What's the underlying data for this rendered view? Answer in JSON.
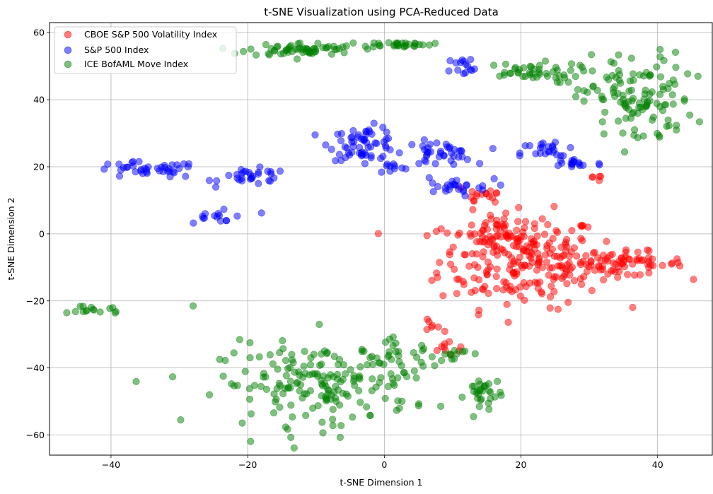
{
  "chart_data": {
    "type": "scatter",
    "title": "t-SNE Visualization using PCA-Reduced Data",
    "xlabel": "t-SNE Dimension 1",
    "ylabel": "t-SNE Dimension 2",
    "xlim": [
      -49,
      48
    ],
    "ylim": [
      -66,
      63
    ],
    "xticks": [
      -40,
      -20,
      0,
      20,
      40
    ],
    "yticks": [
      -60,
      -40,
      -20,
      0,
      20,
      40,
      60
    ],
    "xtick_labels": [
      "−40",
      "−20",
      "0",
      "20",
      "40"
    ],
    "ytick_labels": [
      "−60",
      "−40",
      "−20",
      "0",
      "20",
      "40",
      "60"
    ],
    "grid": true,
    "legend_position": "top-left",
    "point_alpha": 0.5,
    "series": [
      {
        "name": "CBOE S&P 500 Volatility Index",
        "color": "#ff0000",
        "clusters": [
          {
            "cx": 20,
            "cy": -8,
            "sx": 6,
            "sy": 7,
            "n": 220
          },
          {
            "cx": 17,
            "cy": 1,
            "sx": 3,
            "sy": 2,
            "n": 40
          },
          {
            "cx": 34,
            "cy": -9,
            "sx": 5,
            "sy": 1.8,
            "n": 80
          },
          {
            "cx": 14,
            "cy": 12,
            "sx": 2,
            "sy": 2,
            "n": 15
          },
          {
            "cx": 31.5,
            "cy": 17,
            "sx": 0.5,
            "sy": 1,
            "n": 5
          },
          {
            "cx": 7,
            "cy": -27,
            "sx": 0.8,
            "sy": 1.5,
            "n": 6
          },
          {
            "cx": 9.5,
            "cy": -34,
            "sx": 1.5,
            "sy": 1.5,
            "n": 10
          }
        ]
      },
      {
        "name": "S&P 500 Index",
        "color": "#0000ff",
        "clusters": [
          {
            "cx": -35,
            "cy": 19,
            "sx": 4,
            "sy": 1.2,
            "n": 40
          },
          {
            "cx": -19,
            "cy": 17,
            "sx": 2.5,
            "sy": 1.2,
            "n": 30
          },
          {
            "cx": -24,
            "cy": 5,
            "sx": 2.5,
            "sy": 1.8,
            "n": 15
          },
          {
            "cx": -3,
            "cy": 27,
            "sx": 2.5,
            "sy": 2.5,
            "n": 60
          },
          {
            "cx": 8,
            "cy": 24,
            "sx": 2.5,
            "sy": 1.8,
            "n": 40
          },
          {
            "cx": 10,
            "cy": 14,
            "sx": 3,
            "sy": 1.2,
            "n": 25
          },
          {
            "cx": 24,
            "cy": 24,
            "sx": 2,
            "sy": 2,
            "n": 25
          },
          {
            "cx": 28,
            "cy": 21,
            "sx": 2,
            "sy": 1,
            "n": 15
          },
          {
            "cx": 12,
            "cy": 50,
            "sx": 1.5,
            "sy": 1.5,
            "n": 15
          },
          {
            "cx": 1,
            "cy": 20,
            "sx": 1,
            "sy": 1,
            "n": 10
          }
        ]
      },
      {
        "name": "ICE BofAML Move Index",
        "color": "#008000",
        "clusters": [
          {
            "cx": -12,
            "cy": 55,
            "sx": 4,
            "sy": 1,
            "n": 60
          },
          {
            "cx": 2,
            "cy": 56.5,
            "sx": 2.5,
            "sy": 0.4,
            "n": 30
          },
          {
            "cx": 21,
            "cy": 48,
            "sx": 4,
            "sy": 1.5,
            "n": 45
          },
          {
            "cx": 37,
            "cy": 40,
            "sx": 4,
            "sy": 7,
            "n": 120
          },
          {
            "cx": -42,
            "cy": -22.5,
            "sx": 2,
            "sy": 0.8,
            "n": 15
          },
          {
            "cx": -10,
            "cy": -45,
            "sx": 7,
            "sy": 6,
            "n": 170
          },
          {
            "cx": 2,
            "cy": -38,
            "sx": 3,
            "sy": 3,
            "n": 40
          },
          {
            "cx": 14.5,
            "cy": -48,
            "sx": 1.3,
            "sy": 3,
            "n": 30
          },
          {
            "cx": 10,
            "cy": -35.5,
            "sx": 1.2,
            "sy": 0.8,
            "n": 10
          },
          {
            "cx": -28,
            "cy": -21.5,
            "sx": 0.01,
            "sy": 0.01,
            "n": 1
          },
          {
            "cx": -9.5,
            "cy": -27,
            "sx": 0.01,
            "sy": 0.01,
            "n": 1
          }
        ]
      }
    ]
  }
}
